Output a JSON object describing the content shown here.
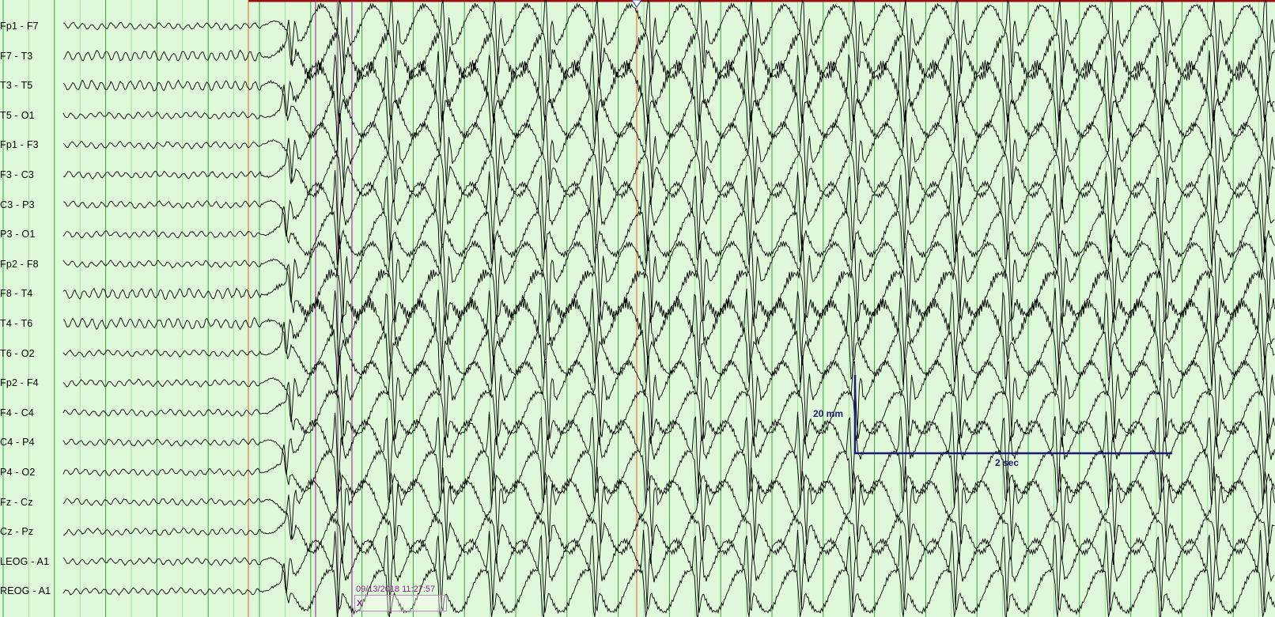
{
  "montage": {
    "channels": [
      "Fp1 - F7",
      "F7 - T3",
      "T3 - T5",
      "T5 - O1",
      "Fp1 - F3",
      "F3 - C3",
      "C3 - P3",
      "P3 - O1",
      "Fp2 - F8",
      "F8 - T4",
      "T4 - T6",
      "T6 - O2",
      "Fp2 - F4",
      "F4 - C4",
      "C4 - P4",
      "P4 - O2",
      "Fz - Cz",
      "Cz - Pz",
      "LEOG - A1",
      "REOG - A1"
    ]
  },
  "calibration": {
    "amplitude_label": "20 mm",
    "time_label": "2 sec"
  },
  "event": {
    "timestamp": "09/13/2018 11:27:57",
    "marker": "X"
  },
  "colors": {
    "background": "#dff8d9",
    "trace": "#000000",
    "grid_major": "#3aa03a",
    "grid_minor": "#8fd88f",
    "cursor_line": "#d8641e",
    "event_line": "#8a1f8a",
    "top_bar": "#9b1111",
    "scale_bar": "#1a1a6e"
  },
  "icons": {
    "page_cursor": "triangle-down-icon"
  }
}
